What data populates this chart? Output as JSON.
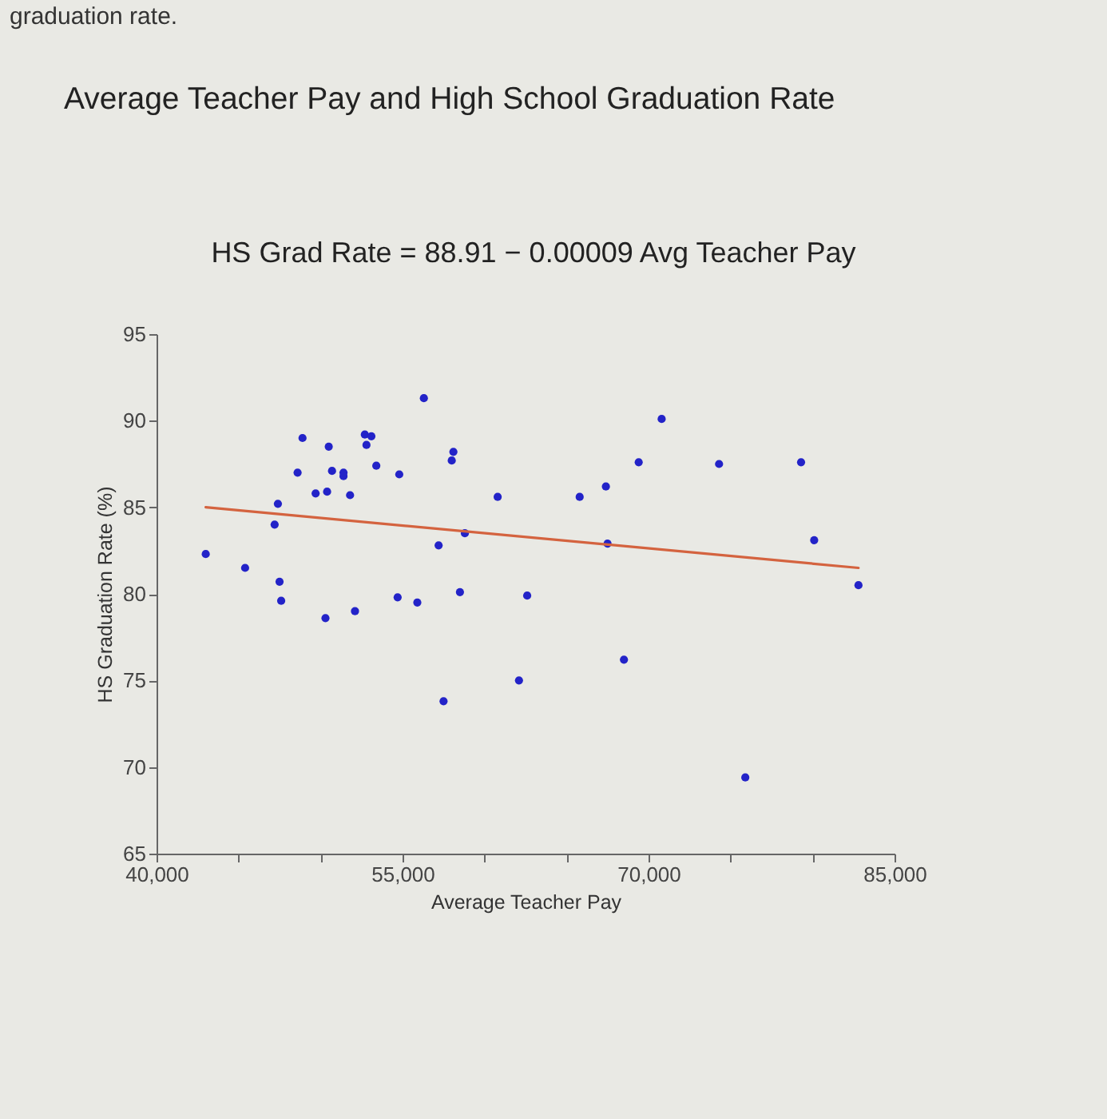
{
  "chart_data": {
    "type": "scatter",
    "title": "Average Teacher Pay and High School Graduation Rate",
    "subtitle": "HS Grad Rate = 88.91 − 0.00009 Avg Teacher Pay",
    "annotations": [
      "graduation rate."
    ],
    "xlabel": "Average Teacher Pay",
    "ylabel": "HS Graduation Rate (%)",
    "series": [
      {
        "color": "#2323c8",
        "marker": "circle",
        "x": [
          43000,
          45400,
          47200,
          47400,
          47500,
          47600,
          48600,
          48900,
          49700,
          50300,
          50400,
          50500,
          50700,
          51400,
          51400,
          51800,
          52100,
          52700,
          52800,
          53100,
          53400,
          54700,
          54800,
          55900,
          56300,
          57200,
          57500,
          58000,
          58100,
          58500,
          58800,
          60800,
          62100,
          62600,
          65800,
          67400,
          67500,
          68500,
          69400,
          70800,
          74300,
          75900,
          79300,
          80100,
          82800
        ],
        "values": [
          82.3,
          81.5,
          84.0,
          85.2,
          80.7,
          79.6,
          87.0,
          89.0,
          85.8,
          78.6,
          85.9,
          88.5,
          87.1,
          87.0,
          86.8,
          85.7,
          79.0,
          89.2,
          88.6,
          89.1,
          87.4,
          79.8,
          86.9,
          79.5,
          91.3,
          82.8,
          73.8,
          87.7,
          88.2,
          80.1,
          83.5,
          85.6,
          75.0,
          79.9,
          85.6,
          86.2,
          82.9,
          76.2,
          87.6,
          90.1,
          87.5,
          69.4,
          87.6,
          83.1,
          80.5
        ]
      },
      {
        "type": "line",
        "color": "#d4633f",
        "marker": "none",
        "line_style": "solid",
        "x": [
          43000,
          82800
        ],
        "values": [
          85.0,
          81.5
        ]
      }
    ],
    "xlim": [
      40000,
      85000
    ],
    "xticks": [
      {
        "value": 40000,
        "label": "40,000"
      },
      {
        "value": 45000,
        "label": null
      },
      {
        "value": 50000,
        "label": null
      },
      {
        "value": 55000,
        "label": "55,000"
      },
      {
        "value": 60000,
        "label": null
      },
      {
        "value": 65000,
        "label": null
      },
      {
        "value": 70000,
        "label": "70,000"
      },
      {
        "value": 75000,
        "label": null
      },
      {
        "value": 80000,
        "label": null
      },
      {
        "value": 85000,
        "label": "85,000"
      }
    ],
    "ylim": [
      65,
      95
    ],
    "yticks": [
      65,
      70,
      75,
      80,
      85,
      90,
      95
    ],
    "grid": false,
    "legend": false
  }
}
